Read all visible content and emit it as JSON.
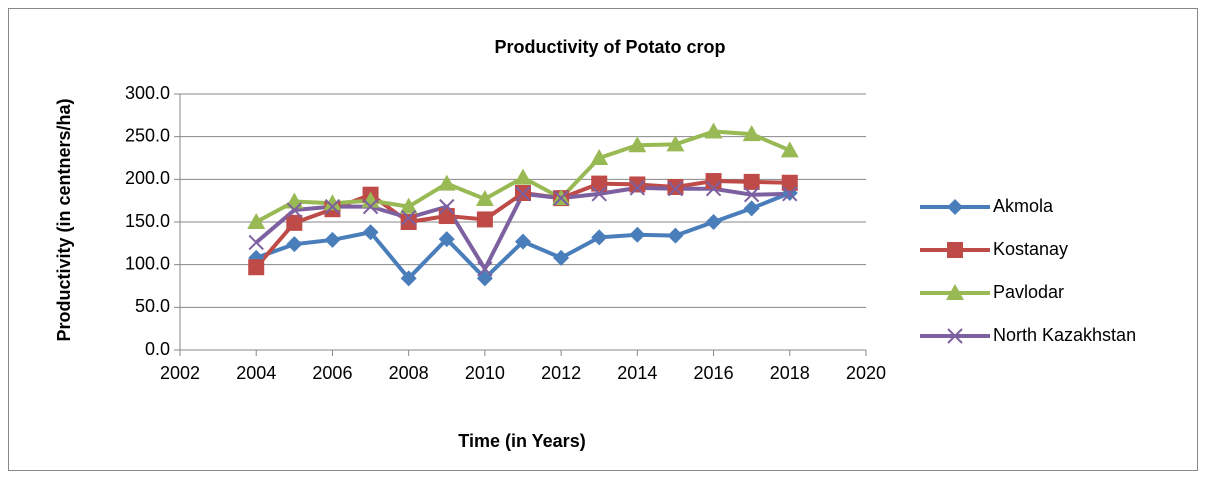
{
  "chart_data": {
    "type": "line",
    "title": "Productivity of Potato crop",
    "xlabel": "Time (in Years)",
    "ylabel": "Productivity (in centners/ha)",
    "x": [
      2004,
      2005,
      2006,
      2007,
      2008,
      2009,
      2010,
      2011,
      2012,
      2013,
      2014,
      2015,
      2016,
      2017,
      2018
    ],
    "series": [
      {
        "name": "Akmola",
        "color": "#4a7ebb",
        "marker": "diamond",
        "values": [
          108,
          124,
          129,
          138,
          84,
          130,
          84,
          127,
          108,
          132,
          135,
          134,
          150,
          166,
          184
        ]
      },
      {
        "name": "Kostanay",
        "color": "#be4b48",
        "marker": "square",
        "values": [
          97,
          149,
          165,
          182,
          150,
          157,
          153,
          184,
          178,
          195,
          194,
          191,
          198,
          197,
          196
        ]
      },
      {
        "name": "Pavlodar",
        "color": "#98b954",
        "marker": "triangle",
        "values": [
          150,
          174,
          172,
          175,
          168,
          195,
          177,
          202,
          178,
          225,
          240,
          241,
          256,
          253,
          234
        ]
      },
      {
        "name": "North Kazakhstan",
        "color": "#7d60a0",
        "marker": "x",
        "values": [
          126,
          164,
          168,
          168,
          155,
          168,
          95,
          183,
          178,
          183,
          190,
          189,
          189,
          182,
          183
        ]
      }
    ],
    "xlim": [
      2002,
      2020
    ],
    "xticks": [
      2002,
      2004,
      2006,
      2008,
      2010,
      2012,
      2014,
      2016,
      2018,
      2020
    ],
    "ylim": [
      0,
      300
    ],
    "yticks": [
      {
        "value": 0,
        "label": "0.0"
      },
      {
        "value": 50,
        "label": "50.0"
      },
      {
        "value": 100,
        "label": "100.0"
      },
      {
        "value": 150,
        "label": "150.0"
      },
      {
        "value": 200,
        "label": "200.0"
      },
      {
        "value": 250,
        "label": "250.0"
      },
      {
        "value": 300,
        "label": "300.0"
      }
    ],
    "grid": true,
    "legend": "right"
  }
}
